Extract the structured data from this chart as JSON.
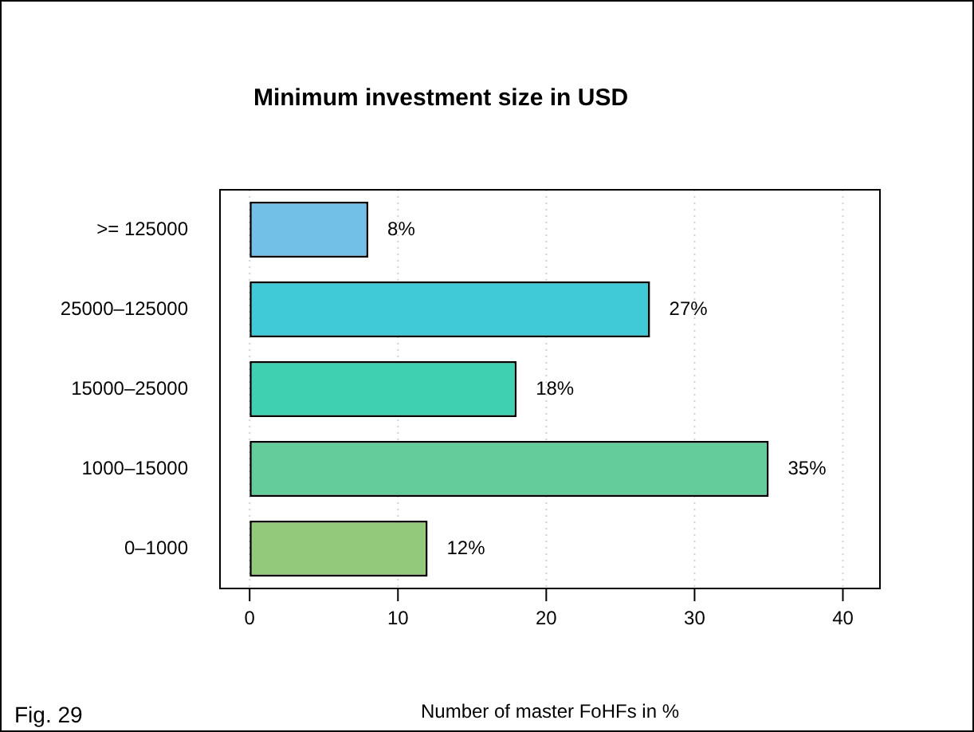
{
  "chart_data": {
    "type": "bar",
    "orientation": "horizontal",
    "title": "Minimum investment size in USD",
    "xlabel": "Number of master FoHFs in %",
    "categories": [
      ">= 125000",
      "25000–125000",
      "15000–25000",
      "1000–15000",
      "0–1000"
    ],
    "values": [
      8,
      27,
      18,
      35,
      12
    ],
    "colors": [
      "#72bfe8",
      "#40c9d6",
      "#3fcfb1",
      "#63cc9a",
      "#93c97b"
    ],
    "value_labels": [
      "8%",
      "27%",
      "18%",
      "35%",
      "12%"
    ],
    "xlim": [
      -2,
      42.5
    ],
    "xticks": [
      0,
      10,
      20,
      30,
      40
    ],
    "grid": "x",
    "legend": false,
    "annotations": [
      "Fig. 29"
    ]
  }
}
